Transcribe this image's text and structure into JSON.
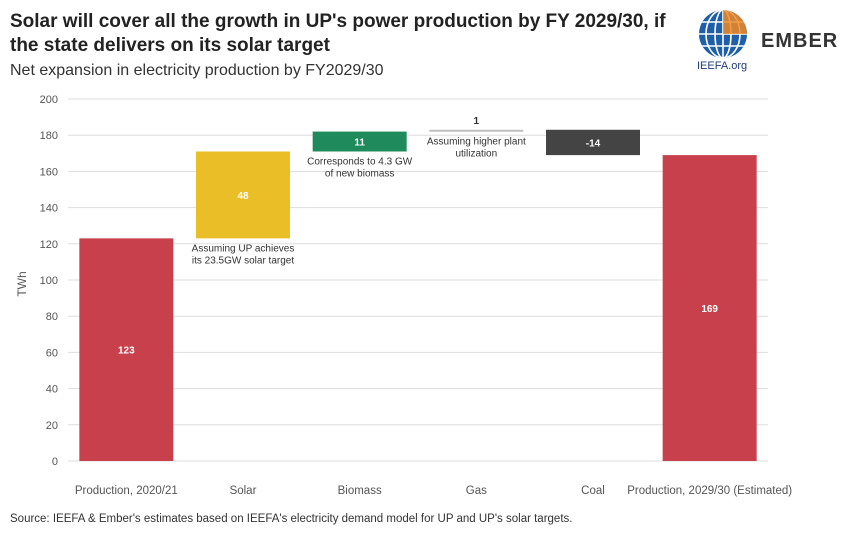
{
  "header": {
    "title": "Solar will cover all the growth in UP's power production by FY 2029/30, if the state delivers on its solar target",
    "subtitle": "Net expansion in electricity production by FY2029/30",
    "source": "Source: IEEFA & Ember's estimates based on IEEFA's electricity demand model for UP and UP's solar targets."
  },
  "logos": {
    "ieefa_text": "IEEFA.org",
    "ember_text": "EMBER"
  },
  "chart_data": {
    "type": "bar",
    "subtype": "waterfall",
    "ylabel": "TWh",
    "ylim": [
      0,
      200
    ],
    "yticks": [
      0,
      20,
      40,
      60,
      80,
      100,
      120,
      140,
      160,
      180,
      200
    ],
    "grid": true,
    "categories": [
      "Production, 2020/21",
      "Solar",
      "Biomass",
      "Gas",
      "Coal",
      "Production, 2029/30 (Estimated)"
    ],
    "bars": [
      {
        "category": "Production, 2020/21",
        "kind": "total",
        "start": 0,
        "end": 123,
        "label": "123",
        "color": "#c8404b"
      },
      {
        "category": "Solar",
        "kind": "delta",
        "start": 123,
        "end": 171,
        "label": "48",
        "color": "#e9be27"
      },
      {
        "category": "Biomass",
        "kind": "delta",
        "start": 171,
        "end": 182,
        "label": "11",
        "color": "#1f8a5b"
      },
      {
        "category": "Gas",
        "kind": "delta",
        "start": 182,
        "end": 183,
        "label": "1",
        "color": "#bfbfbf"
      },
      {
        "category": "Coal",
        "kind": "delta",
        "start": 183,
        "end": 169,
        "label": "-14",
        "color": "#444444"
      },
      {
        "category": "Production, 2029/30 (Estimated)",
        "kind": "total",
        "start": 0,
        "end": 169,
        "label": "169",
        "color": "#c8404b"
      }
    ],
    "annotations": [
      {
        "category": "Solar",
        "lines": [
          "Assuming UP achieves",
          "its 23.5GW solar target"
        ]
      },
      {
        "category": "Biomass",
        "lines": [
          "Corresponds to 4.3 GW",
          "of new biomass"
        ]
      },
      {
        "category": "Gas",
        "lines": [
          "Assuming higher plant",
          "utilization"
        ]
      }
    ]
  }
}
